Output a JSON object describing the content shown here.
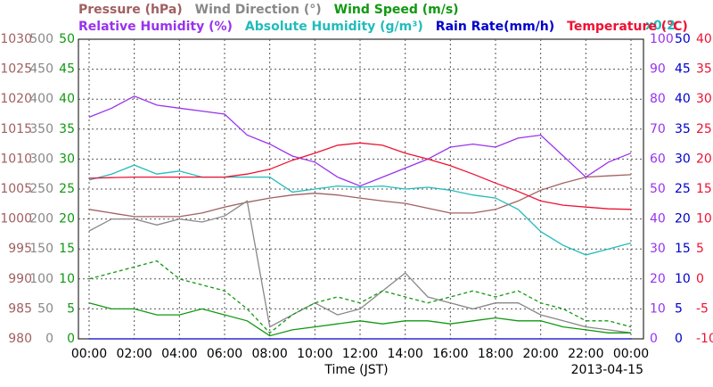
{
  "chart_data": {
    "type": "line",
    "xlabel": "Time (JST)",
    "date_label": "2013-04-15",
    "annotation": "x0.2",
    "xlim": [
      0,
      24
    ],
    "xticks": [
      {
        "value": 0,
        "label": "00:00"
      },
      {
        "value": 2,
        "label": "02:00"
      },
      {
        "value": 4,
        "label": "04:00"
      },
      {
        "value": 6,
        "label": "06:00"
      },
      {
        "value": 8,
        "label": "08:00"
      },
      {
        "value": 10,
        "label": "10:00"
      },
      {
        "value": 12,
        "label": "12:00"
      },
      {
        "value": 14,
        "label": "14:00"
      },
      {
        "value": 16,
        "label": "16:00"
      },
      {
        "value": 18,
        "label": "18:00"
      },
      {
        "value": 20,
        "label": "20:00"
      },
      {
        "value": 22,
        "label": "22:00"
      },
      {
        "value": 24,
        "label": "00:00"
      }
    ],
    "grid": true,
    "x": [
      0,
      1,
      2,
      3,
      4,
      5,
      6,
      7,
      8,
      9,
      10,
      11,
      12,
      13,
      14,
      15,
      16,
      17,
      18,
      19,
      20,
      21,
      22,
      23,
      24
    ],
    "y_axes": [
      {
        "id": "pressure",
        "side": "left",
        "color": "#a06060",
        "lim": [
          980,
          1030
        ],
        "ticks": [
          980,
          985,
          990,
          995,
          1000,
          1005,
          1010,
          1015,
          1020,
          1025,
          1030
        ]
      },
      {
        "id": "direction",
        "side": "left",
        "color": "#888888",
        "lim": [
          0,
          500
        ],
        "ticks": [
          0,
          50,
          100,
          150,
          200,
          250,
          300,
          350,
          400,
          450,
          500
        ]
      },
      {
        "id": "speed",
        "side": "left",
        "color": "#119911",
        "lim": [
          0,
          50
        ],
        "ticks": [
          0,
          5,
          10,
          15,
          20,
          25,
          30,
          35,
          40,
          45,
          50
        ]
      },
      {
        "id": "humidity",
        "side": "right",
        "color": "#9933ee",
        "lim": [
          0,
          100
        ],
        "ticks": [
          0,
          10,
          20,
          30,
          40,
          50,
          60,
          70,
          80,
          90,
          100
        ]
      },
      {
        "id": "rain",
        "side": "right",
        "color": "#0000cc",
        "lim": [
          0,
          50
        ],
        "ticks": [
          0,
          5,
          10,
          15,
          20,
          25,
          30,
          35,
          40,
          45,
          50
        ]
      },
      {
        "id": "temperature",
        "side": "right",
        "color": "#ee1133",
        "lim": [
          -10,
          40
        ],
        "ticks": [
          -10,
          -5,
          0,
          5,
          10,
          15,
          20,
          25,
          30,
          35,
          40
        ]
      }
    ],
    "series": [
      {
        "name": "Pressure (hPa)",
        "axis": "pressure",
        "color": "#a06060",
        "legend_row": 0,
        "values": [
          1001.6,
          1001,
          1000.4,
          1000.4,
          1000.4,
          1001,
          1002,
          1002.8,
          1003.5,
          1004,
          1004.3,
          1004,
          1003.5,
          1003,
          1002.6,
          1001.8,
          1001,
          1001,
          1001.6,
          1003,
          1004.8,
          1006,
          1007,
          1007.2,
          1007.4
        ]
      },
      {
        "name": "Wind Direction (°)",
        "axis": "direction",
        "color": "#888888",
        "legend_row": 0,
        "values": [
          180,
          200,
          200,
          190,
          200,
          195,
          205,
          230,
          20,
          40,
          60,
          40,
          50,
          80,
          110,
          70,
          60,
          50,
          60,
          60,
          40,
          30,
          20,
          15,
          10
        ]
      },
      {
        "name": "Wind Speed (m/s)",
        "axis": "speed",
        "color": "#119911",
        "legend_row": 0,
        "values": [
          6,
          5,
          5,
          4,
          4,
          5,
          4,
          3,
          0.5,
          1.5,
          2,
          2.5,
          3,
          2.5,
          3,
          3,
          2.5,
          3,
          3.5,
          3,
          3,
          2,
          1.5,
          1,
          1
        ],
        "gust_values": [
          10,
          11,
          12,
          13,
          10,
          9,
          8,
          5,
          1,
          4,
          6,
          7,
          6,
          8,
          7,
          6,
          7,
          8,
          7,
          8,
          6,
          5,
          3,
          3,
          2
        ]
      },
      {
        "name": "Relative Humidity (%)",
        "axis": "humidity",
        "color": "#9933ee",
        "legend_row": 1,
        "values": [
          74,
          77,
          81,
          78,
          77,
          76,
          75,
          68,
          65,
          61,
          59,
          54,
          51,
          54,
          57,
          60,
          64,
          65,
          64,
          67,
          68,
          61,
          54,
          59,
          62
        ]
      },
      {
        "name": "Absolute Humidity (g/m³)",
        "axis": "rain",
        "color": "#22bbbb",
        "legend_row": 1,
        "values": [
          26.5,
          27.5,
          29,
          27.5,
          28,
          27,
          27,
          27,
          27,
          24.5,
          25,
          25.5,
          25.3,
          25.5,
          25,
          25.3,
          24.8,
          24,
          23.5,
          21.6,
          17.9,
          15.6,
          14,
          15,
          16
        ]
      },
      {
        "name": "Rain Rate(mm/h)",
        "axis": "rain",
        "color": "#0000cc",
        "legend_row": 1,
        "values": [
          0,
          0,
          0,
          0,
          0,
          0,
          0,
          0,
          0,
          0,
          0,
          0,
          0,
          0,
          0,
          0,
          0,
          0,
          0,
          0,
          0,
          0,
          0,
          0,
          0
        ]
      },
      {
        "name": "Temperature (°C)",
        "axis": "temperature",
        "color": "#ee1133",
        "legend_row": 1,
        "values": [
          16.8,
          16.9,
          17,
          17,
          17,
          17,
          17,
          17.5,
          18.3,
          19.8,
          21,
          22.3,
          22.7,
          22.3,
          21,
          20,
          18.9,
          17.5,
          16,
          14.6,
          13,
          12.3,
          12,
          11.7,
          11.6
        ]
      }
    ]
  }
}
